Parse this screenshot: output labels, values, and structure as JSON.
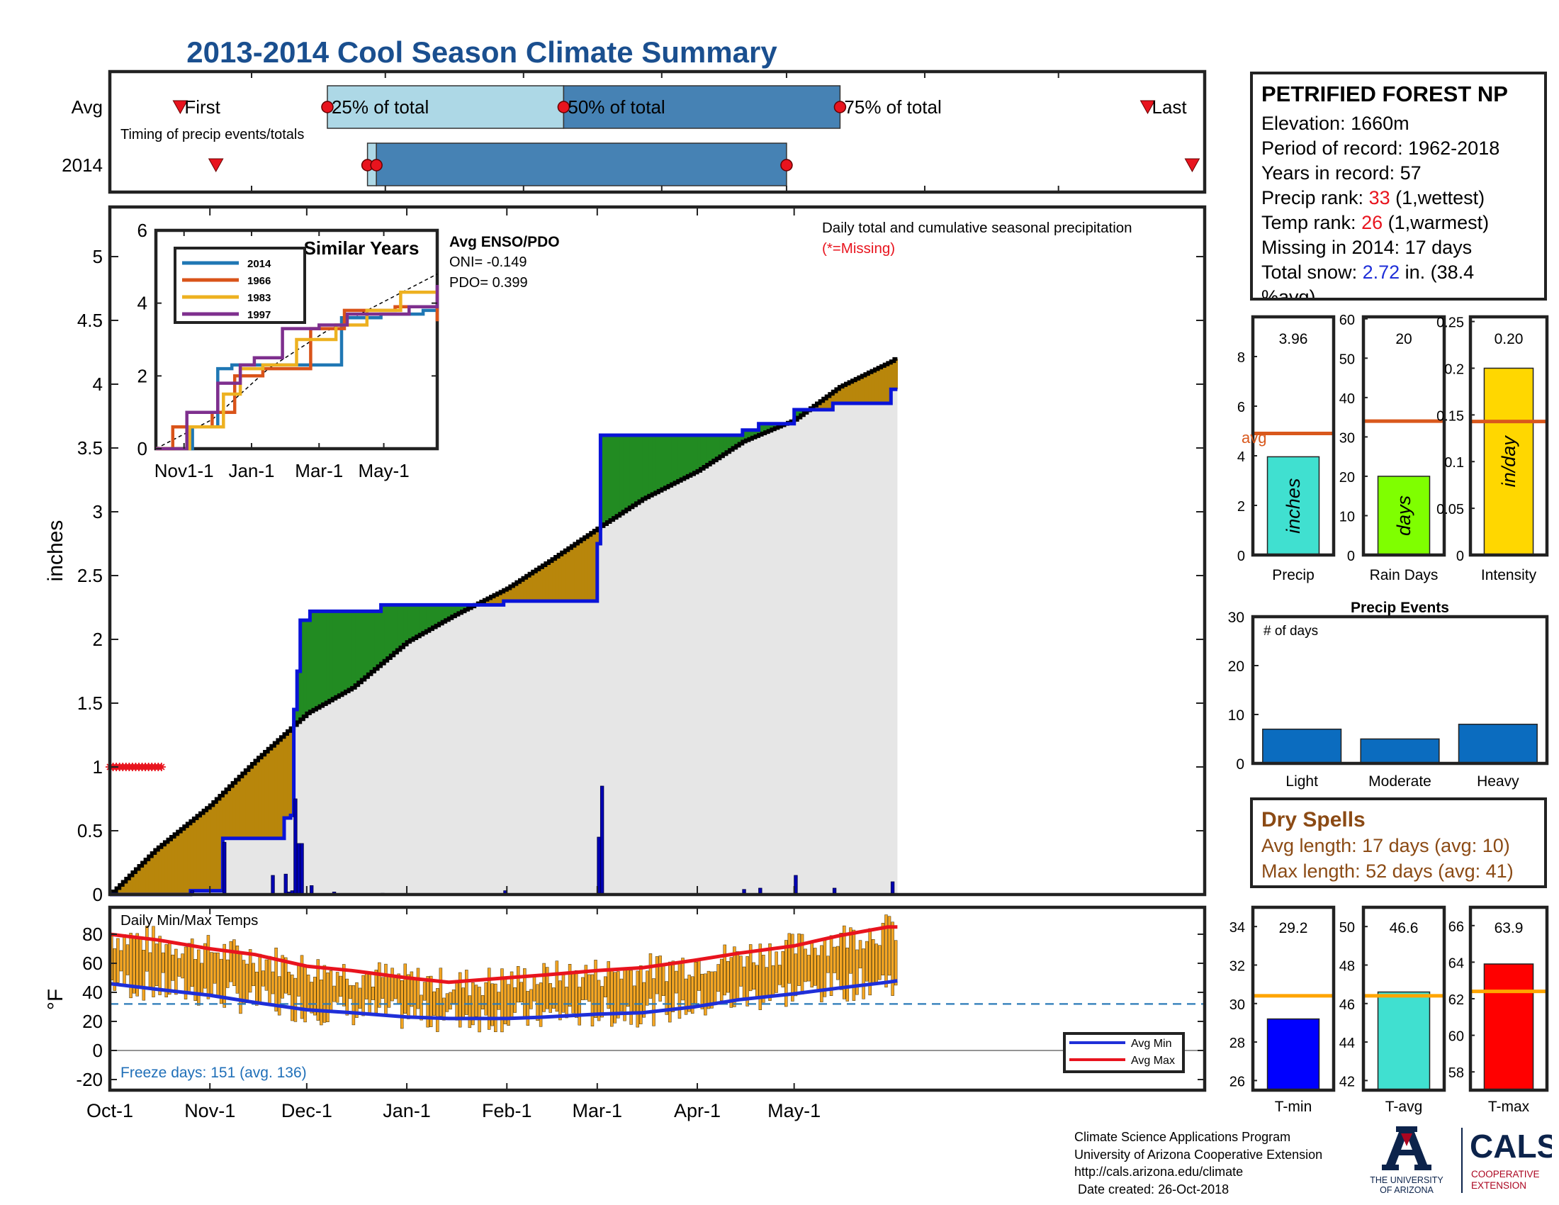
{
  "title": "2013-2014 Cool Season Climate Summary",
  "timing": {
    "row_labels": [
      "Avg",
      "2014"
    ],
    "markers": {
      "first": "First",
      "p25": "25% of total",
      "p50": "50% of total",
      "p75": "75% of total",
      "last": "Last"
    },
    "caption": "Timing of precip events/totals",
    "avg": {
      "first": "Oct-16",
      "p25": "Nov-18",
      "p50": "Jan-10",
      "p75": "Mar-13",
      "last": "May-21"
    },
    "y2014": {
      "first": "Oct-24",
      "p25": "Nov-27",
      "p25b": "Nov-29",
      "p75": "Mar-01",
      "last": "May-31"
    }
  },
  "station": {
    "name": "PETRIFIED FOREST NP",
    "elevation": "Elevation: 1660m",
    "period": "Period of record: 1962-2018",
    "years": "Years in record: 57",
    "precip_rank_label": "Precip rank: ",
    "precip_rank": "33",
    "precip_rank_suffix": " (1,wettest)",
    "temp_rank_label": "Temp rank: ",
    "temp_rank": "26",
    "temp_rank_suffix": " (1,warmest)",
    "missing": "Missing in 2014: 17 days",
    "snow_label": "Total snow: ",
    "snow_value": "2.72",
    "snow_suffix": " in. (38.4",
    "snow_suffix2": "%avg)"
  },
  "dry_spells": {
    "title": "Dry Spells",
    "avg": "Avg length: 17 days (avg: 10)",
    "max": "Max length: 52 days (avg: 41)"
  },
  "credits": {
    "line1": "Climate Science Applications Program",
    "line2": "University of Arizona Cooperative Extension",
    "line3": "http://cals.arizona.edu/climate",
    "line4": " Date created: 26-Oct-2018"
  },
  "logos": {
    "ua_1": "THE UNIVERSITY",
    "ua_2": "OF ARIZONA",
    "cals": "CALS",
    "cals_1": "COOPERATIVE",
    "cals_2": "EXTENSION"
  },
  "colors": {
    "title": "#1a4f8f",
    "cum2014": "#0a14d8",
    "above_avg": "#b8860b",
    "below_avg": "#228b22",
    "background_fill": "#e6e6e6",
    "avg_line": "#d9581c",
    "temp_bars": "#f5a623",
    "avg_max": "#e8141e",
    "avg_min": "#1f2fd8"
  },
  "chart_data": [
    {
      "id": "cumulative_precip",
      "type": "area",
      "ylabel": "inches",
      "ylim": [
        0,
        5.4
      ],
      "yticks": [
        0,
        0.5,
        1,
        1.5,
        2,
        2.5,
        3,
        3.5,
        4,
        4.5,
        5
      ],
      "x_tick_labels": [
        "Oct-1",
        "Nov-1",
        "Dec-1",
        "Jan-1",
        "Feb-1",
        "Mar-1",
        "Apr-1",
        "May-1"
      ],
      "annotation": "Daily total and cumulative seasonal precipitation",
      "missing_note": "(*=Missing)",
      "enso_title": "Avg ENSO/PDO",
      "oni": "ONI= -0.149",
      "pdo": "PDO= 0.399",
      "missing_days": [
        "Oct-1",
        "Oct-2",
        "Oct-3",
        "Oct-4",
        "Oct-5",
        "Oct-6",
        "Oct-7",
        "Oct-8",
        "Oct-9",
        "Oct-10",
        "Oct-11",
        "Oct-12",
        "Oct-13",
        "Oct-14",
        "Oct-15",
        "Oct-16",
        "Oct-17"
      ],
      "avg_cumulative": [
        [
          "Oct-1",
          0.0
        ],
        [
          "Oct-15",
          0.35
        ],
        [
          "Nov-1",
          0.7
        ],
        [
          "Nov-15",
          1.05
        ],
        [
          "Dec-1",
          1.42
        ],
        [
          "Dec-15",
          1.62
        ],
        [
          "Jan-1",
          1.98
        ],
        [
          "Jan-15",
          2.18
        ],
        [
          "Feb-1",
          2.4
        ],
        [
          "Feb-15",
          2.63
        ],
        [
          "Mar-1",
          2.87
        ],
        [
          "Mar-15",
          3.1
        ],
        [
          "Apr-1",
          3.32
        ],
        [
          "Apr-15",
          3.55
        ],
        [
          "May-1",
          3.72
        ],
        [
          "May-15",
          3.98
        ],
        [
          "May-31",
          4.18
        ],
        [
          "Jun-15",
          4.45
        ],
        [
          "Jun-30",
          4.88
        ]
      ],
      "series_2014_cumulative": [
        [
          "Oct-1",
          0.0
        ],
        [
          "Oct-25",
          0.0
        ],
        [
          "Oct-26",
          0.03
        ],
        [
          "Nov-4",
          0.03
        ],
        [
          "Nov-5",
          0.44
        ],
        [
          "Nov-23",
          0.44
        ],
        [
          "Nov-24",
          0.6
        ],
        [
          "Nov-26",
          0.62
        ],
        [
          "Nov-27",
          1.45
        ],
        [
          "Nov-28",
          1.75
        ],
        [
          "Nov-29",
          2.15
        ],
        [
          "Dec-1",
          2.15
        ],
        [
          "Dec-2",
          2.22
        ],
        [
          "Dec-24",
          2.27
        ],
        [
          "Jan-1",
          2.27
        ],
        [
          "Jan-31",
          2.3
        ],
        [
          "Feb-28",
          2.3
        ],
        [
          "Mar-1",
          2.75
        ],
        [
          "Mar-2",
          3.6
        ],
        [
          "Apr-14",
          3.6
        ],
        [
          "Apr-15",
          3.64
        ],
        [
          "Apr-20",
          3.69
        ],
        [
          "May-1",
          3.8
        ],
        [
          "May-13",
          3.85
        ],
        [
          "May-30",
          3.85
        ],
        [
          "May-31",
          3.96
        ]
      ],
      "daily_totals_2014": [
        [
          "Oct-26",
          0.03
        ],
        [
          "Nov-5",
          0.41
        ],
        [
          "Nov-20",
          0.15
        ],
        [
          "Nov-24",
          0.16
        ],
        [
          "Nov-25",
          0.02
        ],
        [
          "Nov-26",
          0.03
        ],
        [
          "Nov-27",
          0.75
        ],
        [
          "Nov-28",
          0.4
        ],
        [
          "Nov-29",
          0.4
        ],
        [
          "Dec-2",
          0.07
        ],
        [
          "Dec-9",
          0.02
        ],
        [
          "Dec-24",
          0.01
        ],
        [
          "Jan-31",
          0.03
        ],
        [
          "Mar-1",
          0.45
        ],
        [
          "Mar-2",
          0.85
        ],
        [
          "Apr-15",
          0.04
        ],
        [
          "Apr-20",
          0.05
        ],
        [
          "May-1",
          0.15
        ],
        [
          "May-13",
          0.05
        ],
        [
          "May-31",
          0.1
        ]
      ]
    },
    {
      "id": "similar_years",
      "type": "line",
      "title": "Similar Years",
      "ylim": [
        0,
        6
      ],
      "yticks": [
        0,
        2,
        4,
        6
      ],
      "x_tick_labels": [
        "Nov1-1",
        "Jan-1",
        "Mar-1",
        "May-1"
      ],
      "series": [
        {
          "name": "2014",
          "color": "#1f77b4",
          "values": [
            [
              0,
              0
            ],
            [
              0.12,
              0
            ],
            [
              0.13,
              0.6
            ],
            [
              0.18,
              0.6
            ],
            [
              0.22,
              2.2
            ],
            [
              0.27,
              2.3
            ],
            [
              0.33,
              2.3
            ],
            [
              0.41,
              2.3
            ],
            [
              0.55,
              2.3
            ],
            [
              0.65,
              2.3
            ],
            [
              0.66,
              3.6
            ],
            [
              0.73,
              3.6
            ],
            [
              0.8,
              3.7
            ],
            [
              0.95,
              3.8
            ],
            [
              1.0,
              4.0
            ]
          ]
        },
        {
          "name": "1966",
          "color": "#d95319",
          "values": [
            [
              0,
              0
            ],
            [
              0.05,
              0
            ],
            [
              0.06,
              0.6
            ],
            [
              0.18,
              0.6
            ],
            [
              0.2,
              1.0
            ],
            [
              0.28,
              2.0
            ],
            [
              0.38,
              2.2
            ],
            [
              0.55,
              3.3
            ],
            [
              0.67,
              3.8
            ],
            [
              0.85,
              3.9
            ],
            [
              1.0,
              3.5
            ]
          ]
        },
        {
          "name": "1983",
          "color": "#edb120",
          "values": [
            [
              0,
              0
            ],
            [
              0.1,
              0
            ],
            [
              0.12,
              0.6
            ],
            [
              0.22,
              0.6
            ],
            [
              0.24,
              1.5
            ],
            [
              0.3,
              2.2
            ],
            [
              0.38,
              2.3
            ],
            [
              0.5,
              3.0
            ],
            [
              0.64,
              3.4
            ],
            [
              0.75,
              3.8
            ],
            [
              0.87,
              4.3
            ],
            [
              1.0,
              4.2
            ]
          ]
        },
        {
          "name": "1997",
          "color": "#7e2f8e",
          "values": [
            [
              0,
              0
            ],
            [
              0.09,
              0
            ],
            [
              0.11,
              1.0
            ],
            [
              0.18,
              1.0
            ],
            [
              0.22,
              1.8
            ],
            [
              0.3,
              2.3
            ],
            [
              0.35,
              2.5
            ],
            [
              0.45,
              3.3
            ],
            [
              0.58,
              3.4
            ],
            [
              0.68,
              3.7
            ],
            [
              0.9,
              3.9
            ],
            [
              1.0,
              4.5
            ]
          ]
        }
      ],
      "avg_dashed": [
        [
          0,
          0
        ],
        [
          0.2,
          0.8
        ],
        [
          0.4,
          2.2
        ],
        [
          0.6,
          3.2
        ],
        [
          0.8,
          4.0
        ],
        [
          1.0,
          4.8
        ]
      ]
    },
    {
      "id": "precip_totals",
      "type": "bar",
      "categories": [
        "Precip",
        "Rain Days",
        "Intensity"
      ],
      "values": [
        3.96,
        20,
        0.2
      ],
      "value_labels": [
        "3.96",
        "20",
        "0.20"
      ],
      "bar_labels": [
        "inches",
        "days",
        "in/day"
      ],
      "averages": [
        4.9,
        34,
        0.143
      ],
      "avg_label": "avg",
      "axes": [
        {
          "ylim": [
            0,
            9.6
          ],
          "yticks": [
            0,
            2,
            4,
            6,
            8
          ],
          "color": "#40e0d0"
        },
        {
          "ylim": [
            0,
            60.5
          ],
          "yticks": [
            0,
            10,
            20,
            30,
            40,
            50,
            60
          ],
          "color": "#7fff00"
        },
        {
          "ylim": [
            0,
            0.255
          ],
          "yticks": [
            0,
            0.05,
            0.1,
            0.15,
            0.2,
            0.25
          ],
          "ytick_labels": [
            "0",
            "0.05",
            "0.1",
            "0.15",
            "0.2",
            "0.25"
          ],
          "color": "#ffd700"
        }
      ]
    },
    {
      "id": "precip_events",
      "type": "bar",
      "title": "Precip Events",
      "ylabel": "# of days",
      "categories": [
        "Light",
        "Moderate",
        "Heavy"
      ],
      "values": [
        7,
        5,
        8
      ],
      "ylim": [
        0,
        30
      ],
      "yticks": [
        0,
        10,
        20,
        30
      ]
    },
    {
      "id": "daily_temps",
      "type": "bar",
      "title": "Daily Min/Max Temps",
      "ylabel": "°F",
      "ylim": [
        -25,
        95
      ],
      "yticks": [
        -20,
        0,
        20,
        40,
        60,
        80
      ],
      "x_tick_labels": [
        "Oct-1",
        "Nov-1",
        "Dec-1",
        "Jan-1",
        "Feb-1",
        "Mar-1",
        "Apr-1",
        "May-1"
      ],
      "freeze_line": 32,
      "freeze_days": "Freeze days: 151 (avg. 136)",
      "legend": [
        "Avg Min",
        "Avg Max"
      ],
      "avg_max": [
        [
          0,
          80
        ],
        [
          15,
          76
        ],
        [
          31,
          70
        ],
        [
          45,
          66
        ],
        [
          61,
          58
        ],
        [
          75,
          55
        ],
        [
          92,
          50
        ],
        [
          105,
          47
        ],
        [
          123,
          50
        ],
        [
          135,
          52
        ],
        [
          151,
          55
        ],
        [
          165,
          57
        ],
        [
          181,
          62
        ],
        [
          195,
          67
        ],
        [
          212,
          72
        ],
        [
          226,
          79
        ],
        [
          241,
          85
        ],
        [
          244,
          85
        ]
      ],
      "avg_min": [
        [
          0,
          46
        ],
        [
          15,
          42
        ],
        [
          31,
          38
        ],
        [
          45,
          33
        ],
        [
          61,
          28
        ],
        [
          75,
          26
        ],
        [
          92,
          23
        ],
        [
          105,
          22
        ],
        [
          123,
          22
        ],
        [
          135,
          23
        ],
        [
          151,
          25
        ],
        [
          165,
          26
        ],
        [
          181,
          30
        ],
        [
          195,
          35
        ],
        [
          212,
          39
        ],
        [
          226,
          43
        ],
        [
          241,
          47
        ],
        [
          244,
          48
        ]
      ]
    },
    {
      "id": "temp_summary",
      "type": "bar",
      "categories": [
        "T-min",
        "T-avg",
        "T-max"
      ],
      "values": [
        29.2,
        46.6,
        63.9
      ],
      "value_labels": [
        "29.2",
        "46.6",
        "63.9"
      ],
      "averages": [
        30.4,
        46.4,
        62.4
      ],
      "axes": [
        {
          "ylim": [
            25.5,
            35
          ],
          "yticks": [
            26,
            28,
            30,
            32,
            34
          ],
          "color": "#0000ff"
        },
        {
          "ylim": [
            41.5,
            51
          ],
          "yticks": [
            42,
            44,
            46,
            48,
            50
          ],
          "color": "#40e0d0"
        },
        {
          "ylim": [
            57,
            67
          ],
          "yticks": [
            58,
            60,
            62,
            64,
            66
          ],
          "color": "#ff0000"
        }
      ]
    }
  ]
}
